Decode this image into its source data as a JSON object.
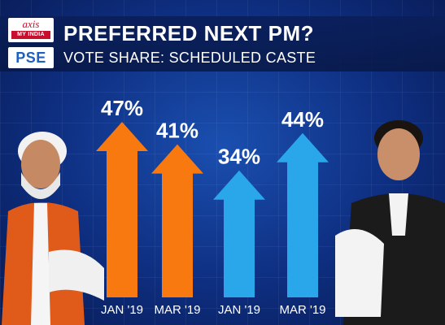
{
  "header": {
    "logo_axis_top": "axis",
    "logo_axis_bottom": "MY INDIA",
    "logo_pse": "PSE",
    "title": "PREFERRED NEXT PM?",
    "subtitle": "VOTE SHARE: SCHEDULED CASTE"
  },
  "colors": {
    "series_orange": "#f7790f",
    "series_blue": "#2aa6ea",
    "background": "#0e2e80"
  },
  "chart_data": {
    "type": "bar",
    "title": "PREFERRED NEXT PM?",
    "subtitle": "VOTE SHARE: SCHEDULED CASTE",
    "xlabel": "",
    "ylabel": "",
    "ylim": [
      0,
      50
    ],
    "bars": [
      {
        "series": 0,
        "category": "JAN '19",
        "value": 47,
        "label": "47%"
      },
      {
        "series": 0,
        "category": "MAR '19",
        "value": 41,
        "label": "41%"
      },
      {
        "series": 1,
        "category": "JAN '19",
        "value": 34,
        "label": "34%"
      },
      {
        "series": 1,
        "category": "MAR '19",
        "value": 44,
        "label": "44%"
      }
    ],
    "series_colors": [
      "#f7790f",
      "#2aa6ea"
    ]
  }
}
